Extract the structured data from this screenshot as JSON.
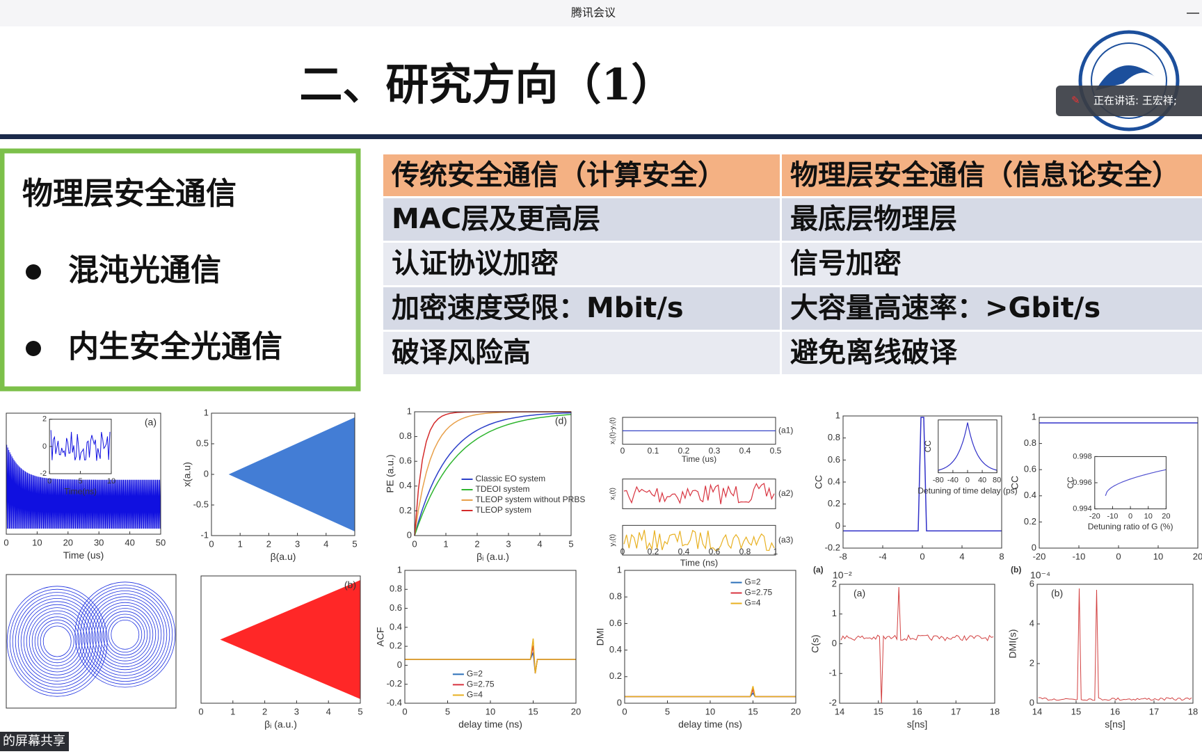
{
  "window": {
    "title": "腾讯会议",
    "speaker": "正在讲话: 王宏祥;",
    "share_label": "的屏幕共享"
  },
  "slide": {
    "title": "二、研究方向（1）",
    "box": {
      "heading": "物理层安全通信",
      "bullets": [
        "混沌光通信",
        "内生安全光通信"
      ]
    },
    "table": {
      "header": [
        "传统安全通信（计算安全）",
        "物理层安全通信（信息论安全）"
      ],
      "rows": [
        [
          "MAC层及更高层",
          "最底层物理层"
        ],
        [
          "认证协议加密",
          "信号加密"
        ],
        [
          "加密速度受限：Mbit/s",
          "大容量高速率：>Gbit/s"
        ],
        [
          "破译风险高",
          "避免离线破译"
        ]
      ]
    }
  },
  "panels": [
    {
      "tag": "(a)",
      "x_label": "Time (us)",
      "x_ticks": [
        0,
        10,
        20,
        30,
        40,
        50
      ],
      "inset": {
        "x_label": "Time(ns)",
        "x_ticks": [
          0,
          5,
          10
        ],
        "y_ticks": [
          -2,
          0,
          2
        ]
      }
    },
    {
      "x_label": "β(a.u)",
      "y_label": "x(a.u)",
      "x_ticks": [
        0,
        1,
        2,
        3,
        4,
        5
      ],
      "y_ticks": [
        -1,
        -0.5,
        0,
        0.5,
        1
      ]
    },
    {
      "tag": "(d)",
      "x_label": "βᵢ (a.u.)",
      "y_label": "PE (a.u.)",
      "x_ticks": [
        0,
        1,
        2,
        3,
        4,
        5
      ],
      "y_ticks": [
        0,
        0.2,
        0.4,
        0.6,
        0.8,
        1
      ],
      "legend": [
        {
          "name": "Classic EO system",
          "color": "#2b3fc9"
        },
        {
          "name": "TDEOI system",
          "color": "#2fb52f"
        },
        {
          "name": "TLEOP system without PRBS",
          "color": "#e8a04a"
        },
        {
          "name": "TLEOP system",
          "color": "#d42a2a"
        }
      ]
    },
    {
      "x_label": "Time (ns)",
      "x_ticks": [
        0,
        0.2,
        0.4,
        0.6,
        0.8,
        1
      ],
      "upper_x_label": "Time (us)",
      "upper_x_ticks": [
        0,
        0.1,
        0.2,
        0.3,
        0.4,
        0.5
      ],
      "strips": [
        {
          "tag": "(a1)",
          "y_label": "x₁(t)-y₁(t)",
          "color": "#1f2fbf"
        },
        {
          "tag": "(a2)",
          "y_label": "x₁(t)",
          "color": "#d8333f"
        },
        {
          "tag": "(a3)",
          "y_label": "y₁(t)",
          "color": "#e8b020"
        }
      ]
    },
    {
      "y_label": "CC",
      "x_ticks": [
        -8,
        -4,
        0,
        4,
        8
      ],
      "y_ticks": [
        -0.2,
        0,
        0.2,
        0.4,
        0.6,
        0.8,
        1
      ],
      "inset": {
        "x_label": "Detuning of time delay (ps)",
        "y_label": "CC",
        "x_ticks": [
          -80,
          -40,
          0,
          40,
          80
        ]
      }
    },
    {
      "y_label": "CC",
      "x_ticks": [
        -20,
        -10,
        0,
        10,
        20
      ],
      "y_ticks": [
        0,
        0.2,
        0.4,
        0.6,
        0.8,
        1
      ],
      "inset": {
        "x_label": "Detuning ratio of G (%)",
        "y_label": "CC",
        "x_ticks": [
          -20,
          -10,
          0,
          10,
          20
        ],
        "y_ticks": [
          0.994,
          0.996,
          0.998
        ]
      }
    },
    {},
    {
      "tag": "(b)",
      "x_label": "βᵢ (a.u.)",
      "x_ticks": [
        0,
        1,
        2,
        3,
        4,
        5
      ]
    },
    {
      "x_label": "delay time (ns)",
      "y_label": "ACF",
      "x_ticks": [
        0,
        5,
        10,
        15,
        20
      ],
      "y_ticks": [
        -0.4,
        -0.2,
        0,
        0.2,
        0.4,
        0.6,
        0.8,
        1
      ],
      "legend": [
        {
          "name": "G=2",
          "color": "#2a6fb8"
        },
        {
          "name": "G=2.75",
          "color": "#d8333f"
        },
        {
          "name": "G=4",
          "color": "#e8b020"
        }
      ]
    },
    {
      "x_label": "delay time (ns)",
      "y_label": "DMI",
      "x_ticks": [
        0,
        5,
        10,
        15,
        20
      ],
      "y_ticks": [
        0,
        0.2,
        0.4,
        0.6,
        0.8,
        1
      ],
      "legend": [
        {
          "name": "G=2",
          "color": "#2a6fb8"
        },
        {
          "name": "G=2.75",
          "color": "#d8333f"
        },
        {
          "name": "G=4",
          "color": "#e8b020"
        }
      ]
    },
    {
      "tag": "(a)",
      "outer_tag": "(a)",
      "scale": "10⁻²",
      "x_label": "s[ns]",
      "y_label": "C(s)",
      "x_ticks": [
        14,
        15,
        16,
        17,
        18
      ],
      "y_ticks": [
        -2,
        -1,
        0,
        1,
        2
      ]
    },
    {
      "tag": "(b)",
      "outer_tag": "(b)",
      "scale": "10⁻⁴",
      "x_label": "s[ns]",
      "y_label": "DMI(s)",
      "x_ticks": [
        14,
        15,
        16,
        17,
        18
      ],
      "y_ticks": [
        0,
        2,
        4,
        6
      ]
    }
  ]
}
